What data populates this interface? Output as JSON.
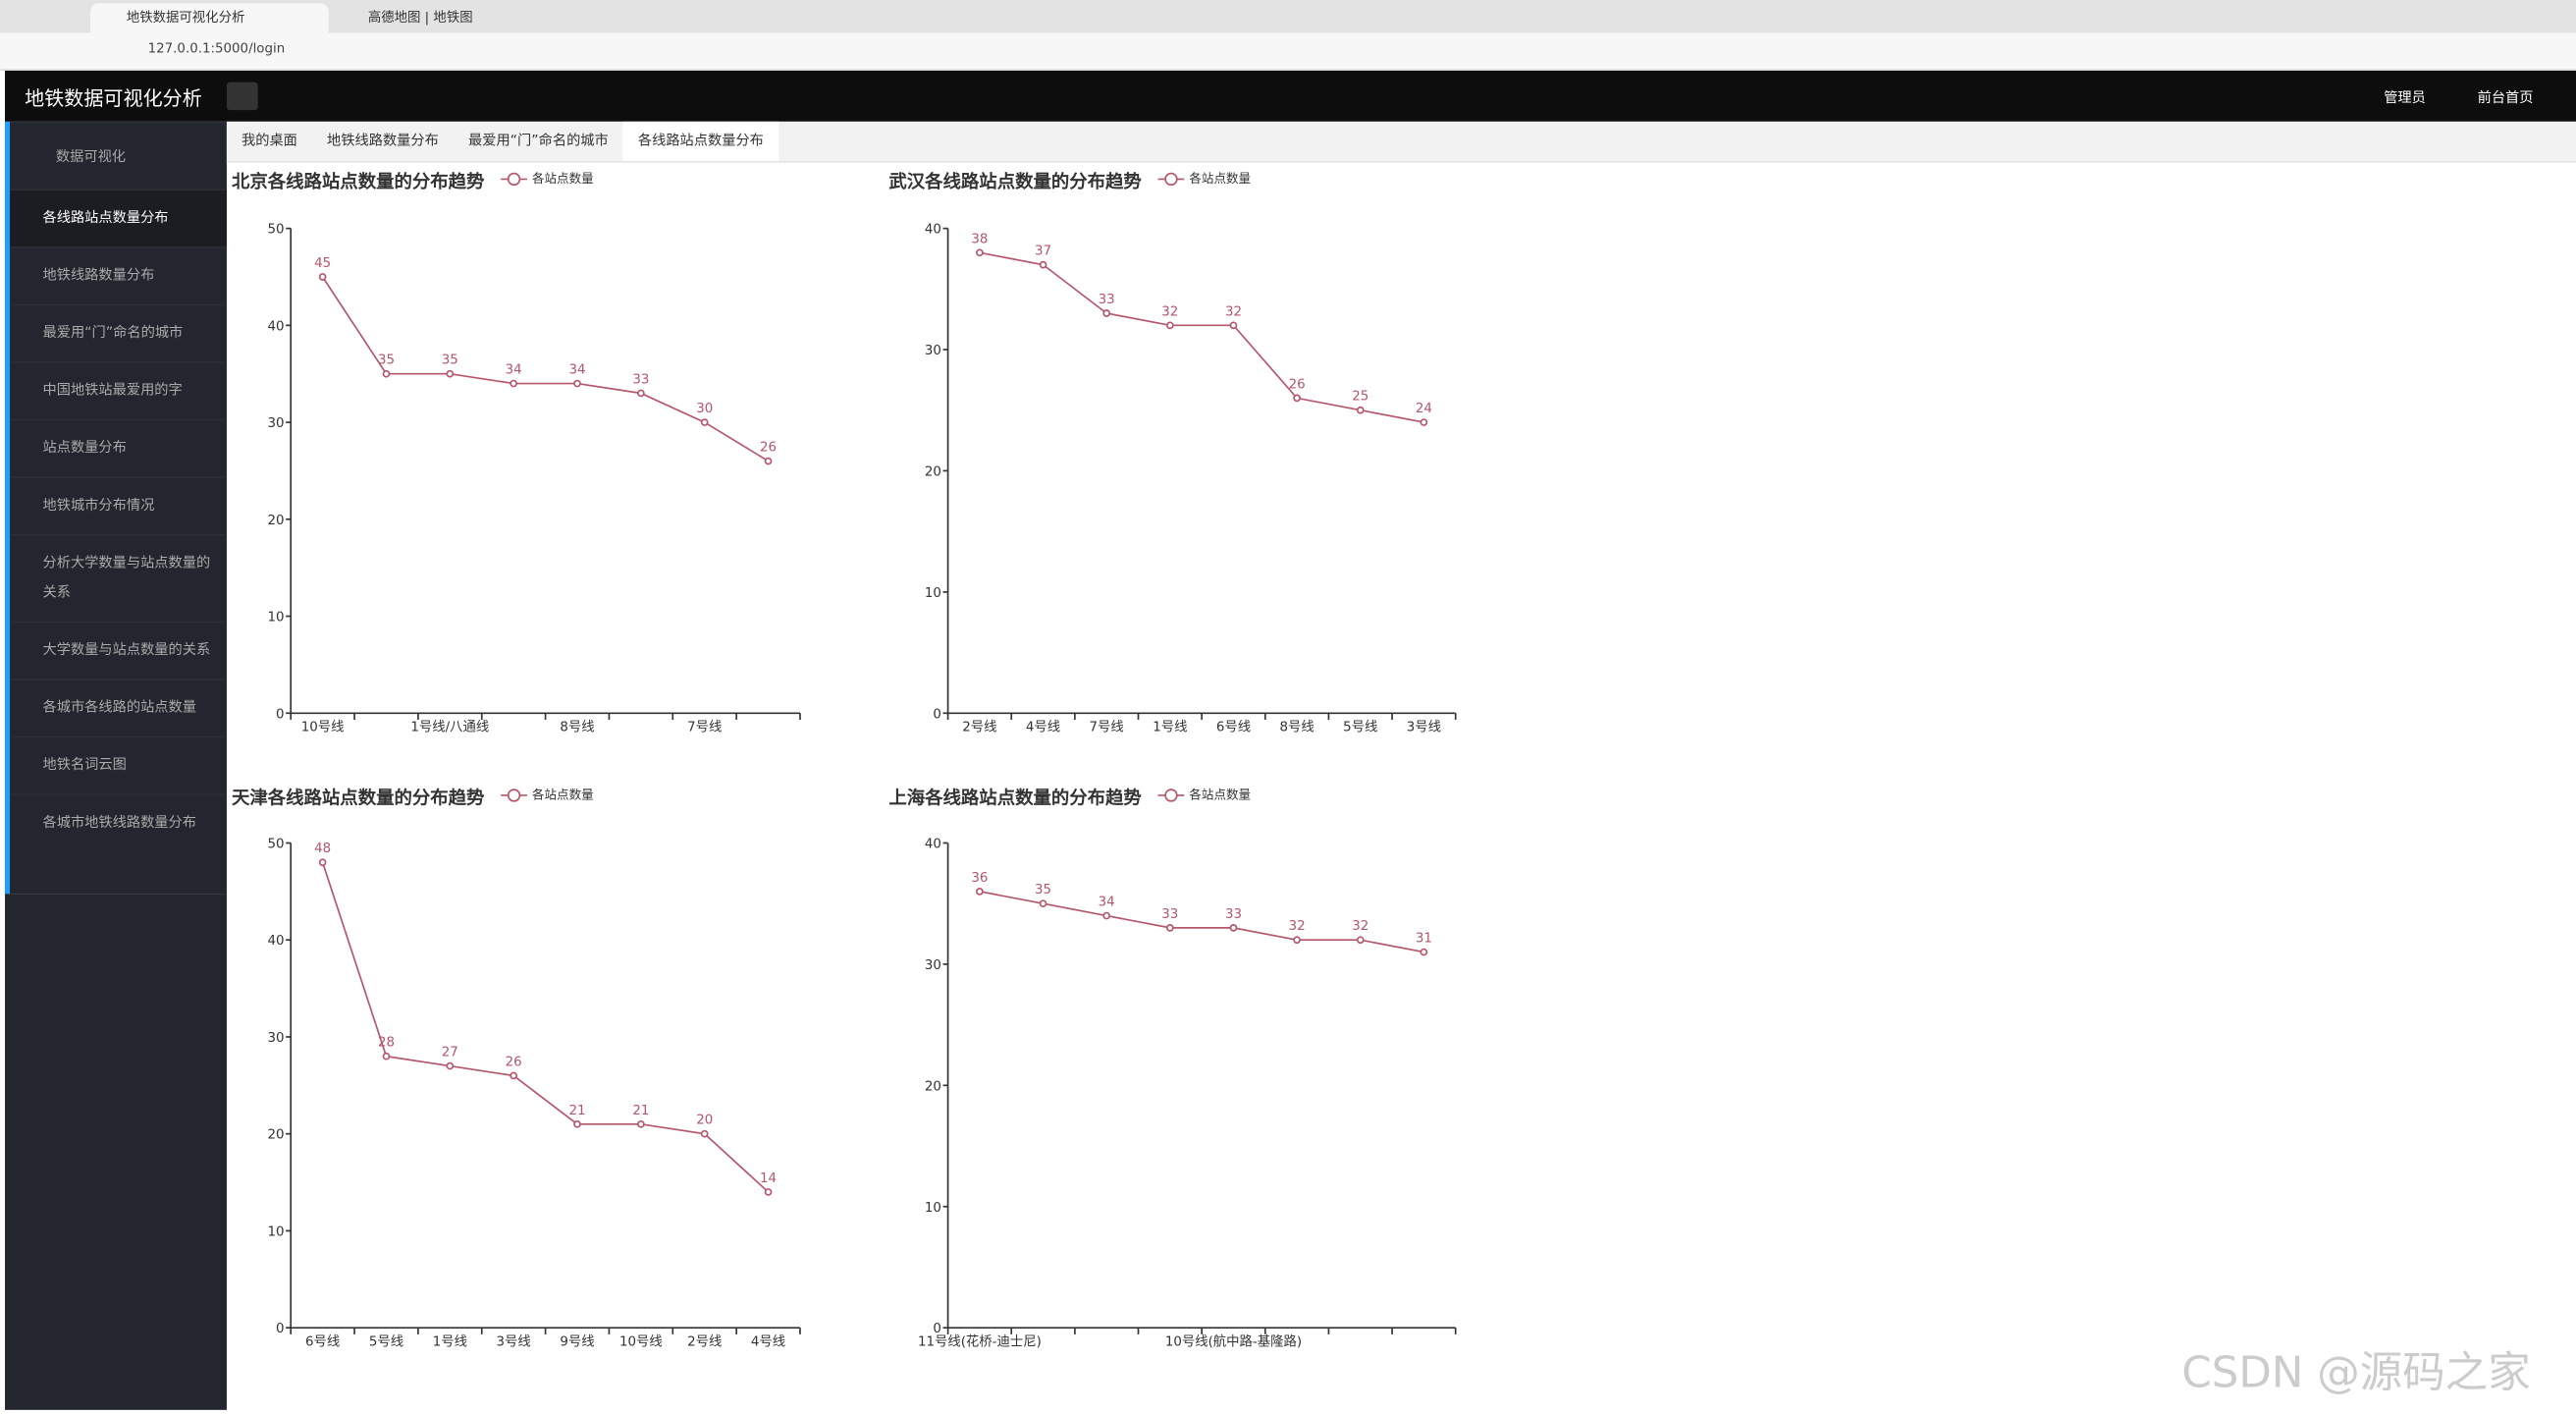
{
  "browser": {
    "tabs": [
      "地铁数据可视化分析",
      "高德地图 | 地铁图"
    ],
    "url": "127.0.0.1:5000/login"
  },
  "header": {
    "title": "地铁数据可视化分析",
    "user": "管理员",
    "home": "前台首页"
  },
  "sidebar": {
    "group": "数据可视化",
    "items": [
      "各线路站点数量分布",
      "地铁线路数量分布",
      "最爱用“门”命名的城市",
      "中国地铁站最爱用的字",
      "站点数量分布",
      "地铁城市分布情况",
      "分析大学数量与站点数量的关系",
      "大学数量与站点数量的关系",
      "各城市各线路的站点数量",
      "地铁名词云图",
      "各城市地铁线路数量分布"
    ]
  },
  "tabs": [
    "我的桌面",
    "地铁线路数量分布",
    "最爱用“门”命名的城市",
    "各线路站点数量分布"
  ],
  "chart_data": [
    {
      "type": "line",
      "title": "北京各线路站点数量的分布趋势",
      "categories": [
        "10号线",
        null,
        "1号线/八通线",
        null,
        "8号线",
        null,
        "7号线",
        null
      ],
      "series": [
        {
          "name": "各站点数量",
          "color": "#b5566b",
          "values": [
            45,
            35,
            35,
            34,
            34,
            33,
            30,
            26
          ]
        }
      ],
      "ylim": [
        0,
        50
      ],
      "yticks": [
        0,
        10,
        20,
        30,
        40,
        50
      ]
    },
    {
      "type": "line",
      "title": "武汉各线路站点数量的分布趋势",
      "categories": [
        "2号线",
        "4号线",
        "7号线",
        "1号线",
        "6号线",
        "8号线",
        "5号线",
        "3号线"
      ],
      "series": [
        {
          "name": "各站点数量",
          "color": "#b5566b",
          "values": [
            38,
            37,
            33,
            32,
            32,
            26,
            25,
            24
          ]
        }
      ],
      "ylim": [
        0,
        40
      ],
      "yticks": [
        0,
        10,
        20,
        30,
        40
      ]
    },
    {
      "type": "line",
      "title": "天津各线路站点数量的分布趋势",
      "categories": [
        "6号线",
        "5号线",
        "1号线",
        "3号线",
        "9号线",
        "10号线",
        "2号线",
        "4号线"
      ],
      "series": [
        {
          "name": "各站点数量",
          "color": "#b5566b",
          "values": [
            48,
            28,
            27,
            26,
            21,
            21,
            20,
            14
          ]
        }
      ],
      "ylim": [
        0,
        50
      ],
      "yticks": [
        0,
        10,
        20,
        30,
        40,
        50
      ]
    },
    {
      "type": "line",
      "title": "上海各线路站点数量的分布趋势",
      "categories": [
        "11号线(花桥-迪士尼)",
        null,
        null,
        null,
        "10号线(航中路-基隆路)",
        null,
        null,
        null
      ],
      "series": [
        {
          "name": "各站点数量",
          "color": "#b5566b",
          "values": [
            36,
            35,
            34,
            33,
            33,
            32,
            32,
            31
          ]
        }
      ],
      "ylim": [
        0,
        40
      ],
      "yticks": [
        0,
        10,
        20,
        30,
        40
      ]
    }
  ],
  "watermark": "CSDN @源码之家"
}
